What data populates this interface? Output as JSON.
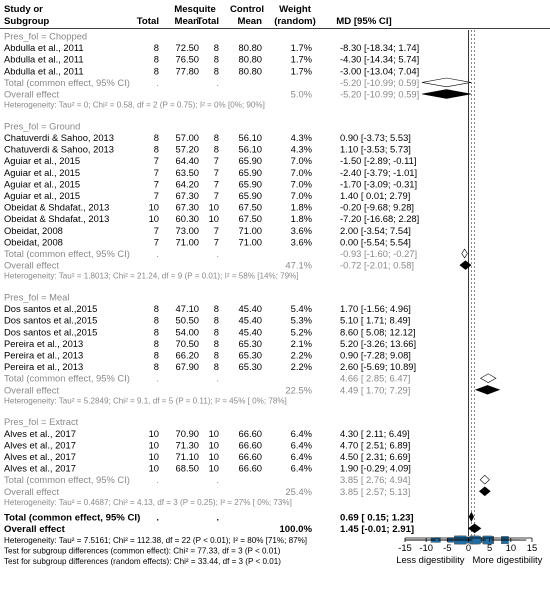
{
  "header": {
    "study_l1": "Study or",
    "study_l2": "Subgroup",
    "exp_name": "Mesquite",
    "ctrl_name": "Control",
    "total": "Total",
    "mean": "Mean",
    "weight_l1": "Weight",
    "weight_l2": "(random)",
    "md": "MD [95% CI]"
  },
  "chart_data": {
    "type": "forest",
    "xlim": [
      -15,
      15
    ],
    "xticks": [
      -15,
      -10,
      -5,
      0,
      5,
      10,
      15
    ],
    "xtick_labels": [
      "-15",
      "-10",
      "-5",
      "0",
      "5",
      "10",
      "15"
    ],
    "xlabel_left": "Less digestibility",
    "xlabel_right": "More digestibility",
    "overall_common": 0.69,
    "overall_random": 1.45,
    "subgroups": [
      {
        "title": "Pres_fol = Chopped",
        "studies": [
          {
            "study": "Abdulla et al., 2011",
            "n_exp": "8",
            "mean_exp": "72.50",
            "n_ctrl": "8",
            "mean_ctrl": "80.80",
            "weight": "1.7%",
            "md_text": "-8.30 [-18.34; 1.74]",
            "md": -8.3,
            "lo": -18.34,
            "hi": 1.74,
            "w": 1.7
          },
          {
            "study": "Abdulla et al., 2011",
            "n_exp": "8",
            "mean_exp": "76.50",
            "n_ctrl": "8",
            "mean_ctrl": "80.80",
            "weight": "1.7%",
            "md_text": "-4.30 [-14.34; 5.74]",
            "md": -4.3,
            "lo": -14.34,
            "hi": 5.74,
            "w": 1.7
          },
          {
            "study": "Abdulla et al., 2011",
            "n_exp": "8",
            "mean_exp": "77.80",
            "n_ctrl": "8",
            "mean_ctrl": "80.80",
            "weight": "1.7%",
            "md_text": "-3.00 [-13.04; 7.04]",
            "md": -3.0,
            "lo": -13.04,
            "hi": 7.04,
            "w": 1.7
          }
        ],
        "common": {
          "label": "Total (common effect, 95% CI)",
          "n_exp": ".",
          "n_ctrl": ".",
          "weight": "",
          "md_text": "-5.20 [-10.99; 0.59]",
          "md": -5.2,
          "lo": -10.99,
          "hi": 0.59
        },
        "random": {
          "label": "Overall effect",
          "weight": "5.0%",
          "md_text": "-5.20 [-10.99; 0.59]",
          "md": -5.2,
          "lo": -10.99,
          "hi": 0.59
        },
        "het": "Heterogeneity: Tau² = 0; Chi² = 0.58, df = 2 (P = 0.75); I² = 0% [0%; 90%]"
      },
      {
        "title": "Pres_fol = Ground",
        "studies": [
          {
            "study": "Chatuverdi & Sahoo, 2013",
            "n_exp": "8",
            "mean_exp": "57.00",
            "n_ctrl": "8",
            "mean_ctrl": "56.10",
            "weight": "4.3%",
            "md_text": "0.90 [-3.73; 5.53]",
            "md": 0.9,
            "lo": -3.73,
            "hi": 5.53,
            "w": 4.3
          },
          {
            "study": "Chatuverdi & Sahoo, 2013",
            "n_exp": "8",
            "mean_exp": "57.20",
            "n_ctrl": "8",
            "mean_ctrl": "56.10",
            "weight": "4.3%",
            "md_text": "1.10 [-3.53; 5.73]",
            "md": 1.1,
            "lo": -3.53,
            "hi": 5.73,
            "w": 4.3
          },
          {
            "study": "Aguiar et al., 2015",
            "n_exp": "7",
            "mean_exp": "64.40",
            "n_ctrl": "7",
            "mean_ctrl": "65.90",
            "weight": "7.0%",
            "md_text": "-1.50 [-2.89; -0.11]",
            "md": -1.5,
            "lo": -2.89,
            "hi": -0.11,
            "w": 7.0
          },
          {
            "study": "Aguiar et al., 2015",
            "n_exp": "7",
            "mean_exp": "63.50",
            "n_ctrl": "7",
            "mean_ctrl": "65.90",
            "weight": "7.0%",
            "md_text": "-2.40 [-3.79; -1.01]",
            "md": -2.4,
            "lo": -3.79,
            "hi": -1.01,
            "w": 7.0
          },
          {
            "study": "Aguiar et al., 2015",
            "n_exp": "7",
            "mean_exp": "64.20",
            "n_ctrl": "7",
            "mean_ctrl": "65.90",
            "weight": "7.0%",
            "md_text": "-1.70 [-3.09; -0.31]",
            "md": -1.7,
            "lo": -3.09,
            "hi": -0.31,
            "w": 7.0
          },
          {
            "study": "Aguiar et al., 2015",
            "n_exp": "7",
            "mean_exp": "67.30",
            "n_ctrl": "7",
            "mean_ctrl": "65.90",
            "weight": "7.0%",
            "md_text": "1.40 [ 0.01; 2.79]",
            "md": 1.4,
            "lo": 0.01,
            "hi": 2.79,
            "w": 7.0
          },
          {
            "study": "Obeidat & Shdafat., 2013",
            "n_exp": "10",
            "mean_exp": "67.30",
            "n_ctrl": "10",
            "mean_ctrl": "67.50",
            "weight": "1.8%",
            "md_text": "-0.20 [-9.68; 9.28]",
            "md": -0.2,
            "lo": -9.68,
            "hi": 9.28,
            "w": 1.8
          },
          {
            "study": "Obeidat & Shdafat., 2013",
            "n_exp": "10",
            "mean_exp": "60.30",
            "n_ctrl": "10",
            "mean_ctrl": "67.50",
            "weight": "1.8%",
            "md_text": "-7.20 [-16.68; 2.28]",
            "md": -7.2,
            "lo": -16.68,
            "hi": 2.28,
            "w": 1.8
          },
          {
            "study": "Obeidat, 2008",
            "n_exp": "7",
            "mean_exp": "73.00",
            "n_ctrl": "7",
            "mean_ctrl": "71.00",
            "weight": "3.6%",
            "md_text": "2.00 [-3.54; 7.54]",
            "md": 2.0,
            "lo": -3.54,
            "hi": 7.54,
            "w": 3.6
          },
          {
            "study": "Obeidat, 2008",
            "n_exp": "7",
            "mean_exp": "71.00",
            "n_ctrl": "7",
            "mean_ctrl": "71.00",
            "weight": "3.6%",
            "md_text": "0.00 [-5.54; 5.54]",
            "md": 0.0,
            "lo": -5.54,
            "hi": 5.54,
            "w": 3.6
          }
        ],
        "common": {
          "label": "Total (common effect, 95% CI)",
          "n_exp": ".",
          "n_ctrl": ".",
          "weight": "",
          "md_text": "-0.93 [-1.60; -0.27]",
          "md": -0.93,
          "lo": -1.6,
          "hi": -0.27
        },
        "random": {
          "label": "Overall effect",
          "weight": "47.1%",
          "md_text": "-0.72 [-2.01; 0.58]",
          "md": -0.72,
          "lo": -2.01,
          "hi": 0.58
        },
        "het": "Heterogeneity: Tau² = 1.8013; Chi² = 21.24, df = 9 (P = 0.01); I² = 58% [14%; 79%]"
      },
      {
        "title": "Pres_fol = Meal",
        "studies": [
          {
            "study": "Dos santos et al.,2015",
            "n_exp": "8",
            "mean_exp": "47.10",
            "n_ctrl": "8",
            "mean_ctrl": "45.40",
            "weight": "5.4%",
            "md_text": "1.70 [-1.56; 4.96]",
            "md": 1.7,
            "lo": -1.56,
            "hi": 4.96,
            "w": 5.4
          },
          {
            "study": "Dos santos et al.,2015",
            "n_exp": "8",
            "mean_exp": "50.50",
            "n_ctrl": "8",
            "mean_ctrl": "45.40",
            "weight": "5.3%",
            "md_text": "5.10 [ 1.71; 8.49]",
            "md": 5.1,
            "lo": 1.71,
            "hi": 8.49,
            "w": 5.3
          },
          {
            "study": "Dos santos et al.,2015",
            "n_exp": "8",
            "mean_exp": "54.00",
            "n_ctrl": "8",
            "mean_ctrl": "45.40",
            "weight": "5.2%",
            "md_text": "8.60 [ 5.08; 12.12]",
            "md": 8.6,
            "lo": 5.08,
            "hi": 12.12,
            "w": 5.2
          },
          {
            "study": "Pereira et al., 2013",
            "n_exp": "8",
            "mean_exp": "70.50",
            "n_ctrl": "8",
            "mean_ctrl": "65.30",
            "weight": "2.1%",
            "md_text": "5.20 [-3.26; 13.66]",
            "md": 5.2,
            "lo": -3.26,
            "hi": 13.66,
            "w": 2.1
          },
          {
            "study": "Pereira et al., 2013",
            "n_exp": "8",
            "mean_exp": "66.20",
            "n_ctrl": "8",
            "mean_ctrl": "65.30",
            "weight": "2.2%",
            "md_text": "0.90 [-7.28; 9.08]",
            "md": 0.9,
            "lo": -7.28,
            "hi": 9.08,
            "w": 2.2
          },
          {
            "study": "Pereira et al., 2013",
            "n_exp": "8",
            "mean_exp": "67.90",
            "n_ctrl": "8",
            "mean_ctrl": "65.30",
            "weight": "2.2%",
            "md_text": "2.60 [-5.69; 10.89]",
            "md": 2.6,
            "lo": -5.69,
            "hi": 10.89,
            "w": 2.2
          }
        ],
        "common": {
          "label": "Total (common effect, 95% CI)",
          "n_exp": ".",
          "n_ctrl": ".",
          "weight": "",
          "md_text": "4.66 [ 2.85; 6.47]",
          "md": 4.66,
          "lo": 2.85,
          "hi": 6.47
        },
        "random": {
          "label": "Overall effect",
          "weight": "22.5%",
          "md_text": "4.49 [ 1.70; 7.29]",
          "md": 4.49,
          "lo": 1.7,
          "hi": 7.29
        },
        "het": "Heterogeneity: Tau² = 5.2849; Chi² = 9.1, df = 5 (P = 0.11); I² = 45% [ 0%; 78%]"
      },
      {
        "title": "Pres_fol = Extract",
        "studies": [
          {
            "study": "Alves et al., 2017",
            "n_exp": "10",
            "mean_exp": "70.90",
            "n_ctrl": "10",
            "mean_ctrl": "66.60",
            "weight": "6.4%",
            "md_text": "4.30 [ 2.11; 6.49]",
            "md": 4.3,
            "lo": 2.11,
            "hi": 6.49,
            "w": 6.4
          },
          {
            "study": "Alves et al., 2017",
            "n_exp": "10",
            "mean_exp": "71.30",
            "n_ctrl": "10",
            "mean_ctrl": "66.60",
            "weight": "6.4%",
            "md_text": "4.70 [ 2.51; 6.89]",
            "md": 4.7,
            "lo": 2.51,
            "hi": 6.89,
            "w": 6.4
          },
          {
            "study": "Alves et al., 2017",
            "n_exp": "10",
            "mean_exp": "71.10",
            "n_ctrl": "10",
            "mean_ctrl": "66.60",
            "weight": "6.4%",
            "md_text": "4.50 [ 2.31; 6.69]",
            "md": 4.5,
            "lo": 2.31,
            "hi": 6.69,
            "w": 6.4
          },
          {
            "study": "Alves et al., 2017",
            "n_exp": "10",
            "mean_exp": "68.50",
            "n_ctrl": "10",
            "mean_ctrl": "66.60",
            "weight": "6.4%",
            "md_text": "1.90 [-0.29; 4.09]",
            "md": 1.9,
            "lo": -0.29,
            "hi": 4.09,
            "w": 6.4
          }
        ],
        "common": {
          "label": "Total (common effect, 95% CI)",
          "n_exp": ".",
          "n_ctrl": ".",
          "weight": "",
          "md_text": "3.85 [ 2.76; 4.94]",
          "md": 3.85,
          "lo": 2.76,
          "hi": 4.94
        },
        "random": {
          "label": "Overall effect",
          "weight": "25.4%",
          "md_text": "3.85 [ 2.57; 5.13]",
          "md": 3.85,
          "lo": 2.57,
          "hi": 5.13
        },
        "het": "Heterogeneity: Tau² = 0.4687; Chi² = 4.13, df = 3 (P = 0.25); I² = 27% [ 0%; 73%]"
      }
    ],
    "total_common": {
      "label": "Total (common effect, 95% CI)",
      "n_exp": ".",
      "n_ctrl": ".",
      "weight": "",
      "md_text": "0.69 [ 0.15; 1.23]",
      "md": 0.69,
      "lo": 0.15,
      "hi": 1.23
    },
    "total_random": {
      "label": "Overall effect",
      "weight": "100.0%",
      "md_text": "1.45 [-0.01; 2.91]",
      "md": 1.45,
      "lo": -0.01,
      "hi": 2.91
    },
    "footer": [
      "Heterogeneity: Tau² = 7.5161; Chi² = 112.38, df = 22 (P < 0.01); I² = 80% [71%; 87%]",
      "Test for subgroup differences (common effect): Chi² = 77.33, df = 3 (P < 0.01)",
      "Test for subgroup differences (random effects): Chi² = 33.44, df = 3 (P < 0.01)"
    ],
    "colors": {
      "square": "#1f6fa6",
      "summary_grey": "#8a8a8a",
      "text": "#000000",
      "het": "#8a8a8a"
    }
  }
}
